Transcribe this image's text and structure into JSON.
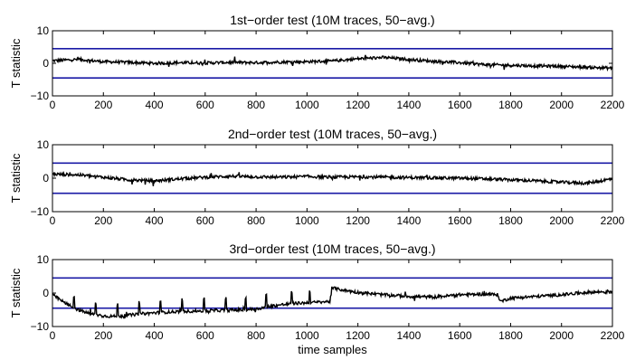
{
  "chart_data": [
    {
      "type": "line",
      "title": "1st−order test (10M traces, 50−avg.)",
      "xlabel": "",
      "ylabel": "T statistic",
      "xlim": [
        0,
        2200
      ],
      "ylim": [
        -10,
        10
      ],
      "xticks": [
        "0",
        "200",
        "400",
        "600",
        "800",
        "1000",
        "1200",
        "1400",
        "1600",
        "1800",
        "2000",
        "2200"
      ],
      "yticks": [
        "10",
        "0",
        "−10"
      ],
      "thresholds": [
        4.5,
        -4.5
      ],
      "series": [
        {
          "color": "#000000",
          "x": [
            0,
            100,
            200,
            300,
            400,
            500,
            600,
            700,
            800,
            900,
            1000,
            1100,
            1200,
            1300,
            1400,
            1500,
            1600,
            1700,
            1800,
            1900,
            2000,
            2100,
            2200
          ],
          "y": [
            0.8,
            1.2,
            0.5,
            0.3,
            0.0,
            0.2,
            0.1,
            0.3,
            0.2,
            0.4,
            0.5,
            0.7,
            1.4,
            1.8,
            1.2,
            0.6,
            0.2,
            -0.4,
            -0.6,
            -0.8,
            -0.9,
            -1.2,
            -1.5
          ]
        }
      ]
    },
    {
      "type": "line",
      "title": "2nd−order test (10M traces, 50−avg.)",
      "xlabel": "",
      "ylabel": "T statistic",
      "xlim": [
        0,
        2200
      ],
      "ylim": [
        -10,
        10
      ],
      "xticks": [
        "0",
        "200",
        "400",
        "600",
        "800",
        "1000",
        "1200",
        "1400",
        "1600",
        "1800",
        "2000",
        "2200"
      ],
      "yticks": [
        "10",
        "0",
        "−10"
      ],
      "thresholds": [
        4.5,
        -4.5
      ],
      "series": [
        {
          "color": "#000000",
          "x": [
            0,
            100,
            200,
            300,
            400,
            500,
            600,
            700,
            800,
            900,
            1000,
            1100,
            1200,
            1300,
            1400,
            1500,
            1600,
            1700,
            1800,
            1900,
            2000,
            2100,
            2200
          ],
          "y": [
            1.2,
            1.0,
            0.3,
            -0.5,
            -0.8,
            -0.2,
            0.3,
            0.6,
            0.4,
            0.3,
            0.5,
            0.3,
            0.4,
            0.3,
            0.2,
            0.1,
            0.0,
            -0.2,
            -0.5,
            -0.8,
            -1.2,
            -1.5,
            -0.2
          ]
        }
      ]
    },
    {
      "type": "line",
      "title": "3rd−order test (10M traces, 50−avg.)",
      "xlabel": "time samples",
      "ylabel": "T statistic",
      "xlim": [
        0,
        2200
      ],
      "ylim": [
        -10,
        10
      ],
      "xticks": [
        "0",
        "200",
        "400",
        "600",
        "800",
        "1000",
        "1200",
        "1400",
        "1600",
        "1800",
        "2000",
        "2200"
      ],
      "yticks": [
        "10",
        "0",
        "−10"
      ],
      "thresholds": [
        4.5,
        -4.5
      ],
      "series": [
        {
          "color": "#000000",
          "x": [
            0,
            50,
            100,
            150,
            200,
            250,
            300,
            350,
            400,
            450,
            500,
            550,
            600,
            650,
            700,
            750,
            800,
            850,
            900,
            950,
            1000,
            1050,
            1090,
            1100,
            1150,
            1200,
            1300,
            1400,
            1500,
            1600,
            1700,
            1750,
            1760,
            1800,
            1900,
            2000,
            2100,
            2200
          ],
          "y": [
            -0.5,
            -3.0,
            -5.0,
            -6.2,
            -6.8,
            -7.0,
            -6.6,
            -6.2,
            -5.9,
            -5.7,
            -5.5,
            -5.4,
            -5.3,
            -5.2,
            -5.1,
            -5.0,
            -4.8,
            -4.0,
            -3.5,
            -3.1,
            -2.9,
            -2.7,
            -2.5,
            1.5,
            0.8,
            0.2,
            -0.5,
            -1.0,
            -1.2,
            -0.5,
            -0.3,
            -0.5,
            -2.5,
            -1.5,
            -1.0,
            -0.5,
            0.2,
            0.5
          ]
        }
      ]
    }
  ]
}
